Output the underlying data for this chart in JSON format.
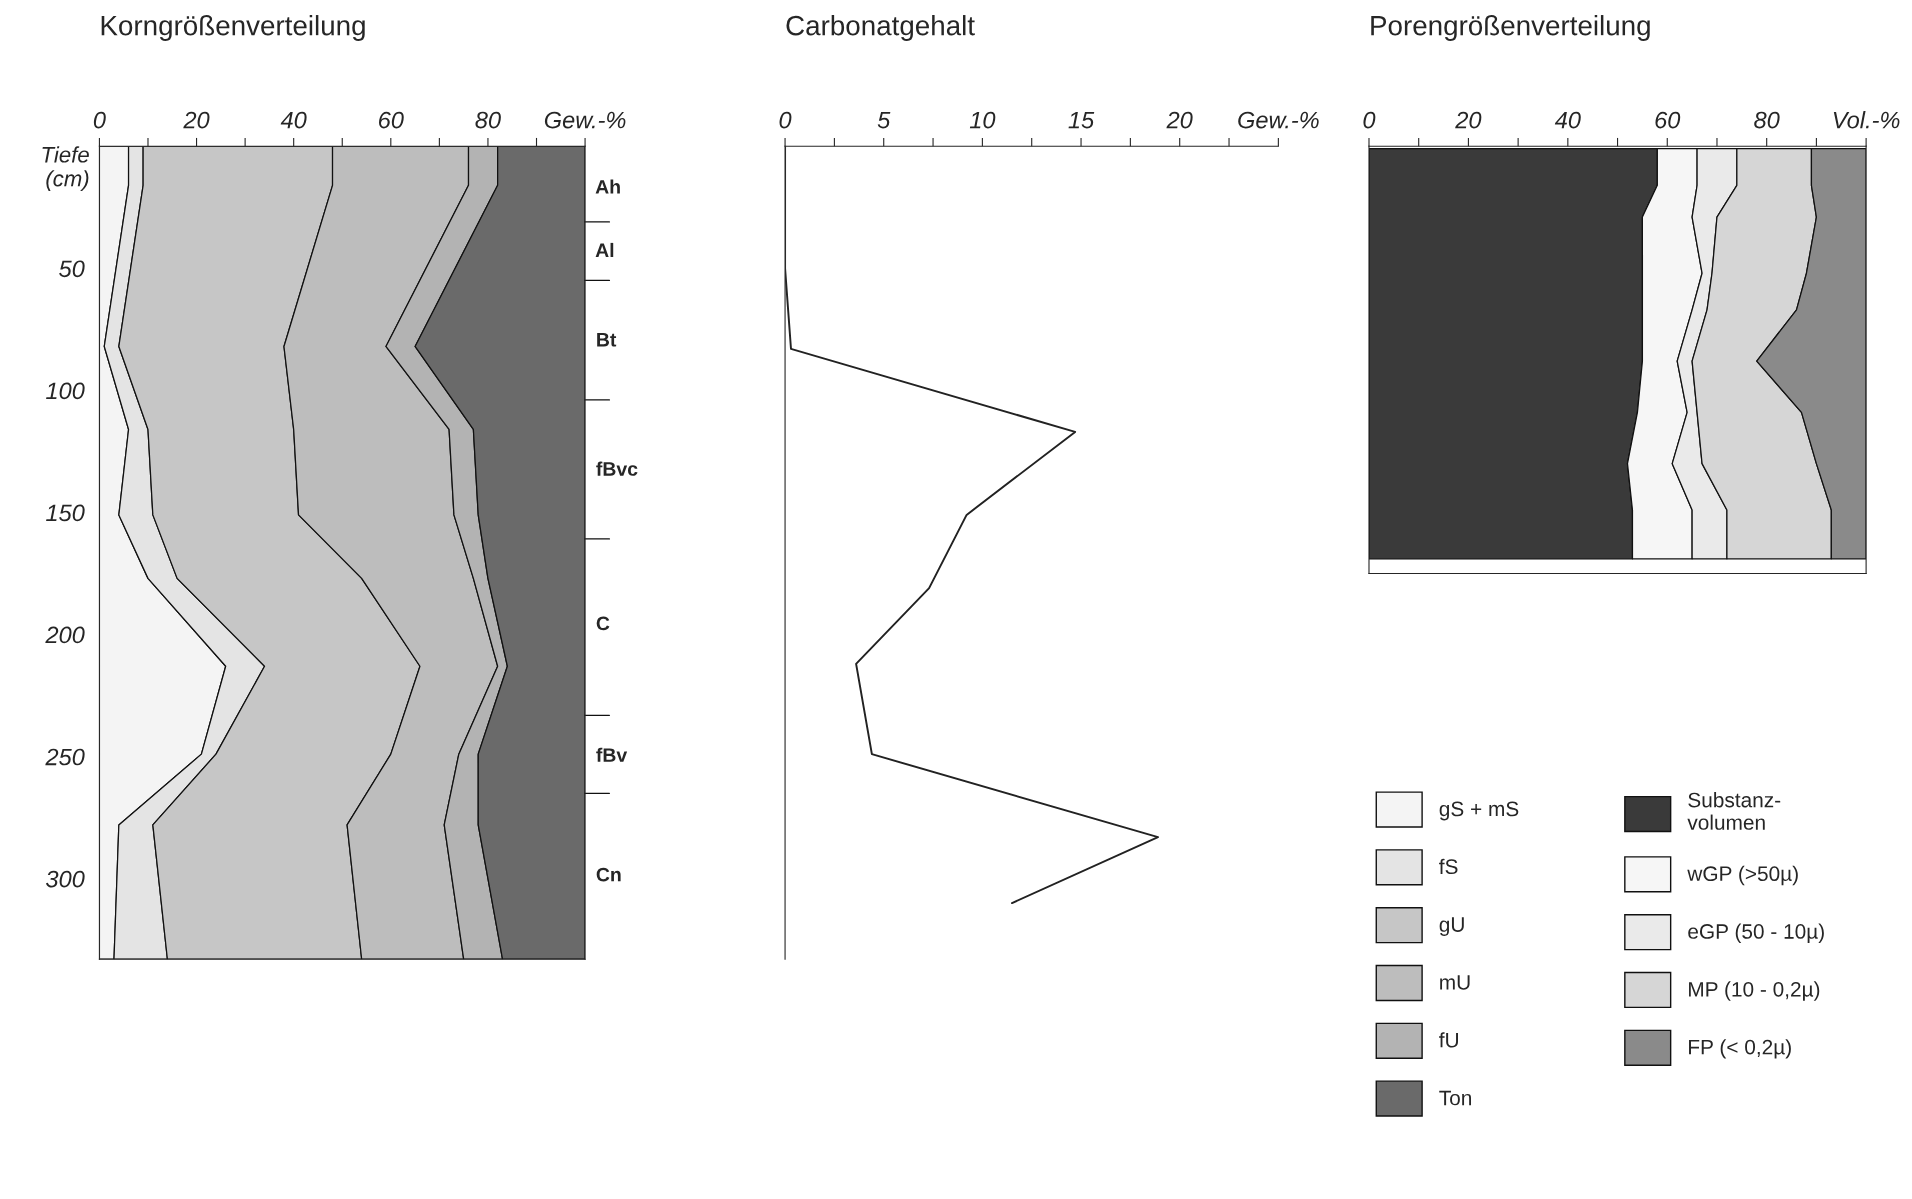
{
  "chart_data": [
    {
      "type": "area",
      "orientation": "horizontal",
      "stacked": true,
      "title": "Korngrößenverteilung",
      "ylabel": "Tiefe\n(cm)",
      "x": [
        0,
        16,
        82,
        116,
        151,
        177,
        213,
        249,
        278,
        333
      ],
      "series": [
        {
          "name": "gS + mS",
          "color": "#f4f4f4",
          "values": [
            6,
            6,
            1,
            6,
            4,
            10,
            26,
            21,
            4,
            3
          ]
        },
        {
          "name": "fS",
          "color": "#e4e4e4",
          "values": [
            3,
            3,
            3,
            4,
            7,
            6,
            8,
            3,
            7,
            11
          ]
        },
        {
          "name": "gU",
          "color": "#c6c6c6",
          "values": [
            39,
            39,
            34,
            30,
            30,
            38,
            32,
            36,
            40,
            40
          ]
        },
        {
          "name": "mU",
          "color": "#bdbdbd",
          "values": [
            28,
            28,
            21,
            32,
            32,
            23,
            16,
            14,
            20,
            21
          ]
        },
        {
          "name": "fU",
          "color": "#b3b3b3",
          "values": [
            6,
            6,
            6,
            5,
            5,
            3,
            2,
            4,
            7,
            8
          ]
        },
        {
          "name": "Ton",
          "color": "#6a6a6a",
          "values": [
            18,
            18,
            35,
            23,
            22,
            20,
            16,
            22,
            22,
            17
          ]
        }
      ],
      "xlim": [
        0,
        100
      ],
      "xticks": [
        0,
        {
          "value": 10,
          "label": null
        },
        20,
        {
          "value": 30,
          "label": null
        },
        40,
        {
          "value": 50,
          "label": null
        },
        60,
        {
          "value": 70,
          "label": null
        },
        80,
        {
          "value": 90,
          "label": null
        },
        {
          "value": 100,
          "label": "Gew.-%"
        }
      ],
      "ylim": [
        333,
        0
      ],
      "yticks": [
        50,
        100,
        150,
        200,
        250,
        300
      ],
      "annotations": [
        "Ah",
        "Al",
        "Bt",
        "fBvc",
        "C",
        "fBv",
        "Cn"
      ],
      "legend": "right"
    },
    {
      "type": "line",
      "orientation": "horizontal",
      "title": "Carbonatgehalt",
      "x": [
        0,
        50,
        83,
        117,
        151,
        181,
        212,
        249,
        283,
        310
      ],
      "series": [
        {
          "color": "#222222",
          "values": [
            0,
            0,
            0.3,
            14.7,
            9.2,
            7.3,
            3.6,
            4.4,
            18.9,
            11.5
          ]
        }
      ],
      "xlim": [
        0,
        25
      ],
      "xticks": [
        0,
        {
          "value": 2.5,
          "label": null
        },
        5,
        {
          "value": 7.5,
          "label": null
        },
        10,
        {
          "value": 12.5,
          "label": null
        },
        15,
        {
          "value": 17.5,
          "label": null
        },
        20,
        {
          "value": 22.5,
          "label": null
        },
        {
          "value": 25,
          "label": "Gew.-%"
        }
      ],
      "ylim": [
        333,
        0
      ],
      "yticks": [
        50,
        100,
        150,
        200,
        250,
        300
      ],
      "tick_labels": "x"
    },
    {
      "type": "area",
      "orientation": "horizontal",
      "stacked": true,
      "title": "Porengrößenverteilung",
      "x": [
        1,
        16,
        29,
        52,
        67,
        88,
        109,
        130,
        149,
        169
      ],
      "series": [
        {
          "name": "Substanz-\nvolumen",
          "color": "#3a3a3a",
          "values": [
            58,
            58,
            55,
            55,
            55,
            55,
            54,
            52,
            53,
            53
          ]
        },
        {
          "name": "wGP (>50µ)",
          "color": "#f6f6f6",
          "values": [
            8,
            8,
            10,
            12,
            10,
            7,
            10,
            9,
            12,
            12
          ]
        },
        {
          "name": "eGP (50 - 10µ)",
          "color": "#eaeaea",
          "values": [
            8,
            8,
            5,
            2,
            3,
            3,
            2,
            6,
            7,
            7
          ]
        },
        {
          "name": "MP (10 - 0,2µ)",
          "color": "#d6d6d6",
          "values": [
            15,
            15,
            20,
            19,
            18,
            13,
            21,
            23,
            21,
            21
          ]
        },
        {
          "name": "FP (< 0,2µ)",
          "color": "#8a8a8a",
          "values": [
            11,
            11,
            10,
            12,
            14,
            22,
            13,
            10,
            7,
            7
          ]
        }
      ],
      "xlim": [
        0,
        100
      ],
      "xticks": [
        0,
        {
          "value": 10,
          "label": null
        },
        20,
        {
          "value": 30,
          "label": null
        },
        40,
        {
          "value": 50,
          "label": null
        },
        60,
        {
          "value": 70,
          "label": null
        },
        80,
        {
          "value": 90,
          "label": null
        },
        {
          "value": 100,
          "label": "Vol.-%"
        }
      ],
      "ylim": [
        175,
        0
      ],
      "yticks": [
        50,
        100,
        150
      ],
      "tick_labels": "x",
      "legend": "bottom"
    }
  ]
}
